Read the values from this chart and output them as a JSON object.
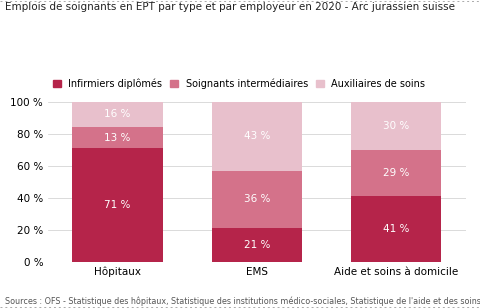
{
  "title": "Emplois de soignants en EPT par type et par employeur en 2020 - Arc jurassien suisse",
  "categories": [
    "Hôpitaux",
    "EMS",
    "Aide et soins à domicile"
  ],
  "series": [
    {
      "label": "Infirmiers diplômés",
      "values": [
        71,
        21,
        41
      ],
      "color": "#B5244A"
    },
    {
      "label": "Soignants intermédiaires",
      "values": [
        13,
        36,
        29
      ],
      "color": "#D4728A"
    },
    {
      "label": "Auxiliaires de soins",
      "values": [
        16,
        43,
        30
      ],
      "color": "#E8C0CC"
    }
  ],
  "ylim": [
    0,
    100
  ],
  "yticks": [
    0,
    20,
    40,
    60,
    80,
    100
  ],
  "ytick_labels": [
    "0 %",
    "20 %",
    "40 %",
    "60 %",
    "80 %",
    "100 %"
  ],
  "source": "Sources : OFS - Statistique des hôpitaux, Statistique des institutions médico-sociales, Statistique de l'aide et des soins à domicile",
  "background_color": "#FFFFFF",
  "title_fontsize": 7.5,
  "label_fontsize": 7.5,
  "tick_fontsize": 7.5,
  "source_fontsize": 5.8,
  "legend_fontsize": 7.0,
  "bar_width": 0.65
}
